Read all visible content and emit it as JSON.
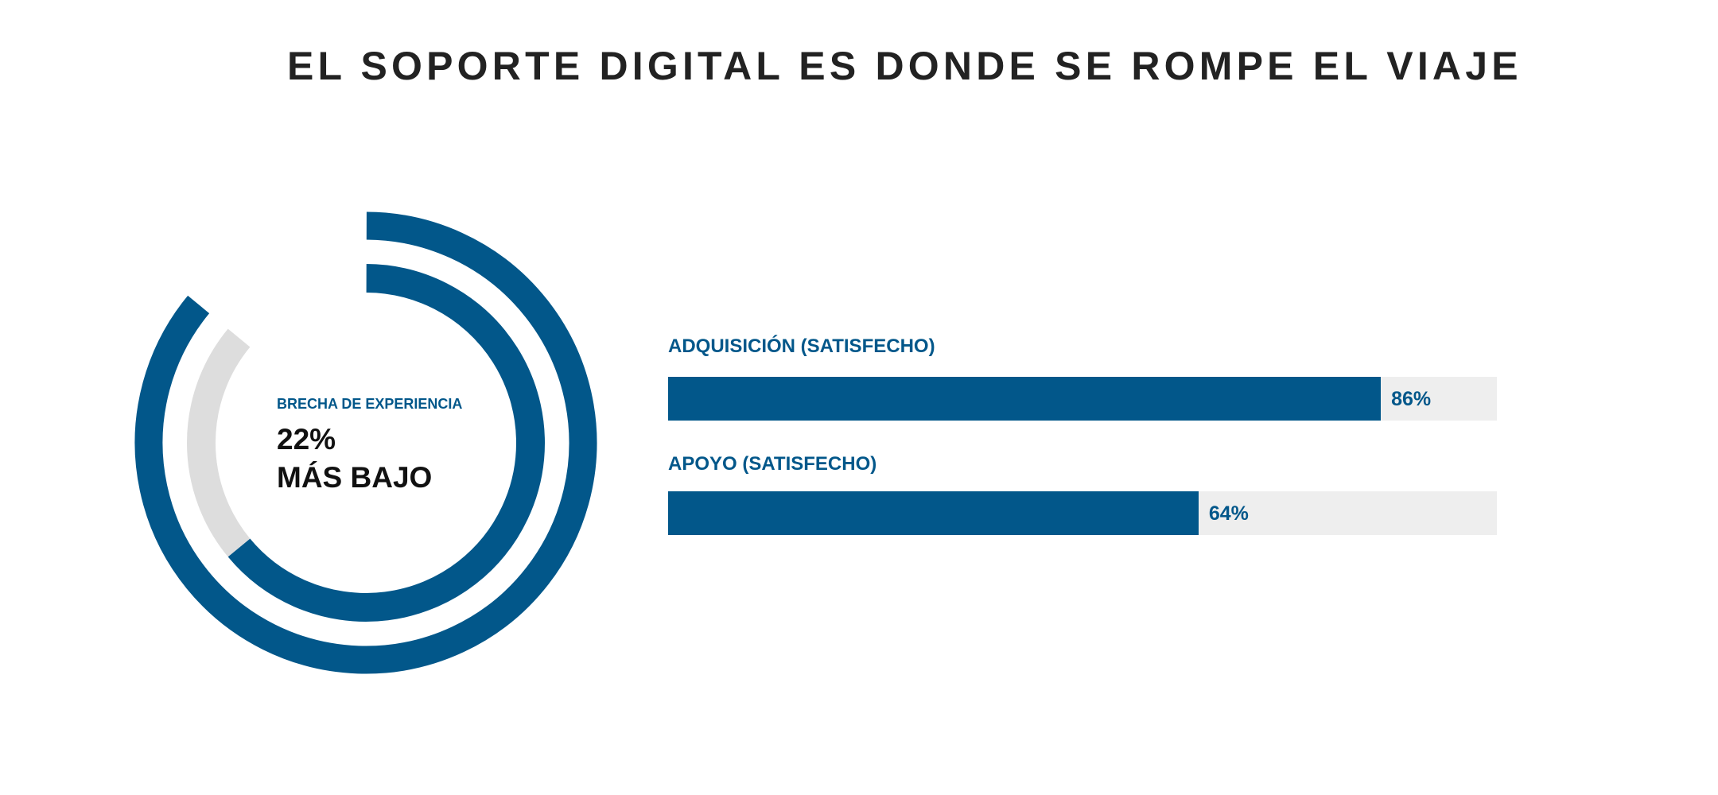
{
  "title": "EL SOPORTE DIGITAL ES DONDE SE ROMPE EL VIAJE",
  "colors": {
    "primary": "#02578a",
    "gap": "#dddddd",
    "track": "#eeeeee",
    "title": "#222222"
  },
  "chart_data": [
    {
      "type": "pie",
      "subtype": "concentric-rings",
      "rings": [
        {
          "name": "Adquisición (satisfecho)",
          "value": 86,
          "color": "#02578a"
        },
        {
          "name": "Apoyo (satisfecho)",
          "value": 64,
          "color": "#02578a",
          "gap_value": 22,
          "gap_color": "#dddddd"
        }
      ],
      "max": 100,
      "center_label": "BRECHA DE EXPERIENCIA",
      "center_value": "22%",
      "center_sub": "MÁS BAJO"
    },
    {
      "type": "bar",
      "orientation": "horizontal",
      "categories": [
        "ADQUISICIÓN (SATISFECHO)",
        "APOYO (SATISFECHO)"
      ],
      "values": [
        86,
        64
      ],
      "value_labels": [
        "86%",
        "64%"
      ],
      "xlim": [
        0,
        100
      ],
      "unit": "%"
    }
  ]
}
